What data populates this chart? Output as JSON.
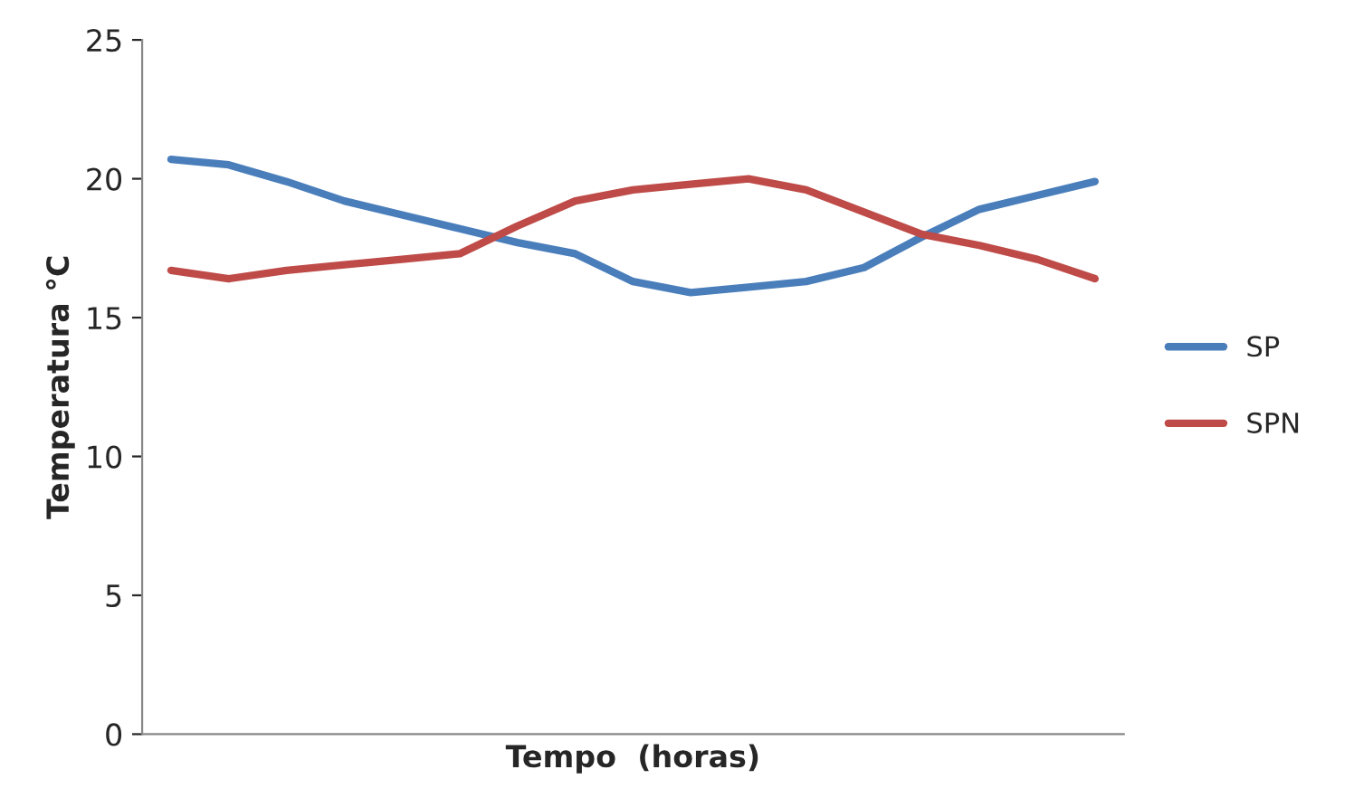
{
  "chart_data": {
    "type": "line",
    "xlabel": "Tempo  (horas)",
    "ylabel": "Temperatura °C",
    "categories": [
      null,
      null,
      null,
      null,
      null,
      null,
      null,
      null,
      null,
      null,
      null,
      null,
      null,
      null,
      null,
      null,
      null
    ],
    "series": [
      {
        "name": "SP",
        "color": "#4a7ebb",
        "values": [
          20.7,
          20.5,
          19.9,
          19.2,
          18.7,
          18.2,
          17.7,
          17.3,
          16.3,
          15.9,
          16.1,
          16.3,
          16.8,
          17.9,
          18.9,
          19.4,
          19.9
        ]
      },
      {
        "name": "SPN",
        "color": "#be4b48",
        "values": [
          16.7,
          16.4,
          16.7,
          16.9,
          17.1,
          17.3,
          18.3,
          19.2,
          19.6,
          19.8,
          20.0,
          19.6,
          18.8,
          18.0,
          17.6,
          17.1,
          16.4
        ]
      }
    ],
    "ylim": [
      0,
      25
    ],
    "yticks": [
      0,
      5,
      10,
      15,
      20,
      25
    ],
    "grid": false,
    "legend": "right",
    "marker": "none",
    "line_style": "solid",
    "tick_labels": "y"
  }
}
